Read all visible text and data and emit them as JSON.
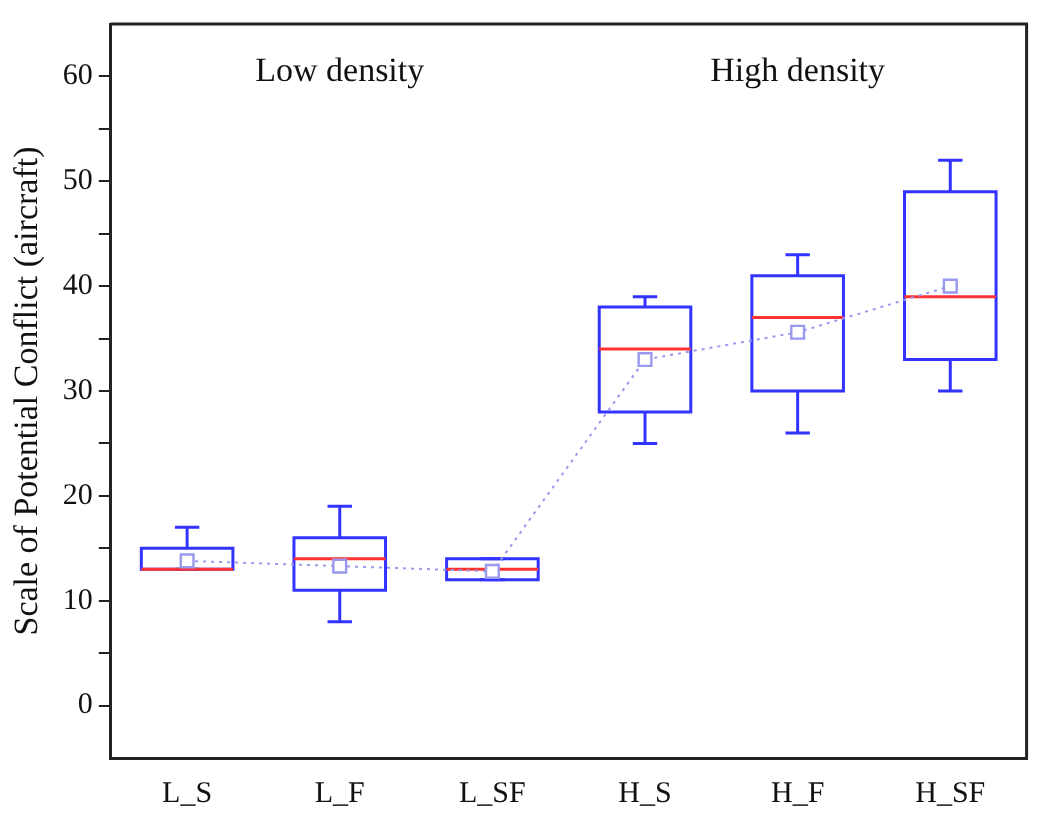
{
  "chart_data": {
    "type": "box",
    "ylabel": "Scale of Potential Conflict (aircraft)",
    "categories": [
      "L_S",
      "L_F",
      "L_SF",
      "H_S",
      "H_F",
      "H_SF"
    ],
    "annotations": [
      "Low density",
      "High density"
    ],
    "ylim": [
      -5,
      65
    ],
    "yticks": [
      0,
      {
        "value": 5,
        "label": null
      },
      10,
      {
        "value": 15,
        "label": null
      },
      20,
      {
        "value": 25,
        "label": null
      },
      30,
      {
        "value": 35,
        "label": null
      },
      40,
      {
        "value": 45,
        "label": null
      },
      50,
      {
        "value": 55,
        "label": null
      },
      60
    ],
    "grid": false,
    "legend": false,
    "series": [
      {
        "color": "#3333ff",
        "boxes": [
          {
            "low": 13,
            "q1": 13,
            "median": 13,
            "q3": 15,
            "high": 17
          },
          {
            "low": 8,
            "q1": 11,
            "median": 14,
            "q3": 16,
            "high": 19
          },
          {
            "low": 12,
            "q1": 12,
            "median": 13,
            "q3": 14,
            "high": 14
          },
          {
            "low": 25,
            "q1": 28,
            "median": 34,
            "q3": 38,
            "high": 39
          },
          {
            "low": 26,
            "q1": 30,
            "median": 37,
            "q3": 41,
            "high": 43
          },
          {
            "low": 30,
            "q1": 33,
            "median": 39,
            "q3": 49,
            "high": 52
          }
        ]
      },
      {
        "type": "line",
        "color": "#9999ee",
        "values": [
          13.8,
          13.3,
          12.8,
          33,
          35.6,
          40
        ],
        "marker": "square",
        "line_style": "dotted"
      }
    ]
  }
}
